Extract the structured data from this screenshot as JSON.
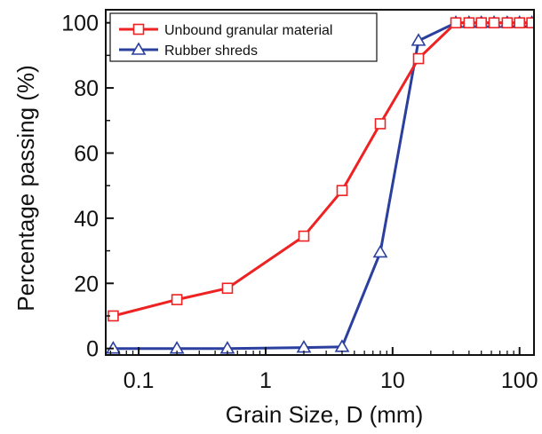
{
  "chart_data": {
    "type": "line",
    "xlabel": "Grain Size, D (mm)",
    "ylabel": "Percentage passing (%)",
    "x_scale": "log",
    "xlim": [
      0.055,
      130
    ],
    "ylim": [
      -2,
      104
    ],
    "x_ticks": [
      0.1,
      1,
      10,
      100
    ],
    "x_tick_labels": [
      "0.1",
      "1",
      "10",
      "100"
    ],
    "y_ticks": [
      0,
      20,
      40,
      60,
      80,
      100
    ],
    "y_tick_labels": [
      "0",
      "20",
      "40",
      "60",
      "80",
      "100"
    ],
    "grid": false,
    "legend_position": "top-left",
    "series": [
      {
        "name": "Unbound granular material",
        "color": "#ee2222",
        "marker": "square",
        "x": [
          0.063,
          0.2,
          0.5,
          2,
          4,
          8,
          16,
          31.5,
          40,
          50,
          63,
          80,
          100,
          125
        ],
        "y": [
          10,
          15,
          18.5,
          34.5,
          48.5,
          69,
          89,
          100,
          100,
          100,
          100,
          100,
          100,
          100
        ]
      },
      {
        "name": "Rubber shreds",
        "color": "#2a3f9e",
        "marker": "triangle",
        "x": [
          0.063,
          0.2,
          0.5,
          2,
          4,
          8,
          16,
          31.5,
          40,
          50,
          63,
          80,
          100,
          125
        ],
        "y": [
          0,
          0,
          0,
          0.3,
          0.5,
          29.5,
          94.5,
          100,
          100,
          100,
          100,
          100,
          100,
          100
        ]
      }
    ]
  }
}
